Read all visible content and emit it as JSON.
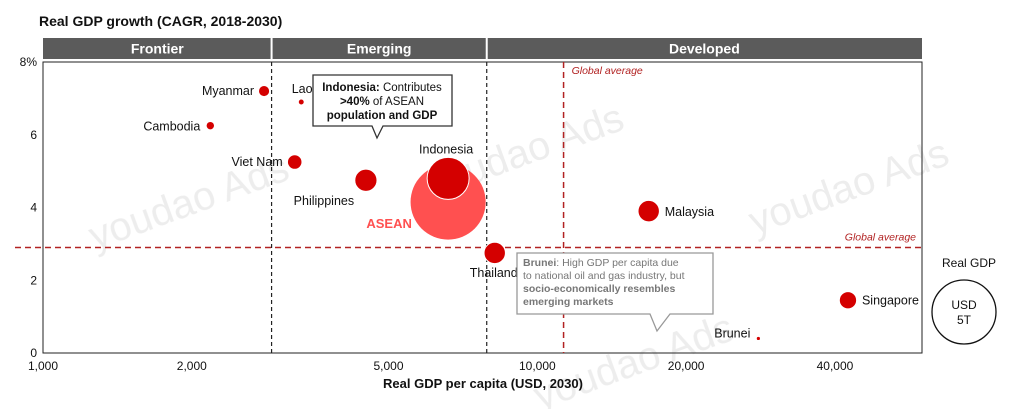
{
  "chart_data": {
    "type": "scatter",
    "title": "Real GDP growth (CAGR, 2018-2030)",
    "xlabel": "Real GDP per capita (USD, 2030)",
    "x_scale": "log",
    "xlim": [
      1000,
      60000
    ],
    "ylim": [
      0,
      8
    ],
    "x_ticks": [
      {
        "value": 1000,
        "label": "1,000"
      },
      {
        "value": 2000,
        "label": "2,000"
      },
      {
        "value": 5000,
        "label": "5,000"
      },
      {
        "value": 10000,
        "label": "10,000"
      },
      {
        "value": 20000,
        "label": "20,000"
      },
      {
        "value": 40000,
        "label": "40,000"
      }
    ],
    "y_ticks": [
      {
        "value": 0,
        "label": "0"
      },
      {
        "value": 2,
        "label": "2"
      },
      {
        "value": 4,
        "label": "4"
      },
      {
        "value": 6,
        "label": "6"
      },
      {
        "value": 8,
        "label": "8%"
      }
    ],
    "segments": [
      {
        "label": "Frontier",
        "x_from": 1000,
        "x_to": 2900
      },
      {
        "label": "Emerging",
        "x_from": 2900,
        "x_to": 7900
      },
      {
        "label": "Developed",
        "x_from": 7900,
        "x_to": 60000
      }
    ],
    "segment_divider_x": [
      2900,
      7900
    ],
    "global_average": {
      "x": 11300,
      "y": 2.9,
      "x_label": "Global average",
      "y_label": "Global average"
    },
    "points": [
      {
        "name": "Myanmar",
        "x": 2800,
        "y": 7.2,
        "size": 0.07
      },
      {
        "name": "Laos",
        "x": 3330,
        "y": 6.9,
        "size": 0.02
      },
      {
        "name": "Cambodia",
        "x": 2180,
        "y": 6.25,
        "size": 0.04
      },
      {
        "name": "Viet Nam",
        "x": 3230,
        "y": 5.25,
        "size": 0.12
      },
      {
        "name": "Philippines",
        "x": 4500,
        "y": 4.75,
        "size": 0.28
      },
      {
        "name": "Indonesia",
        "x": 6600,
        "y": 4.8,
        "size": 1.0
      },
      {
        "name": "ASEAN",
        "x": 6600,
        "y": 4.15,
        "size": 3.2
      },
      {
        "name": "Thailand",
        "x": 8200,
        "y": 2.75,
        "size": 0.26
      },
      {
        "name": "Malaysia",
        "x": 16800,
        "y": 3.9,
        "size": 0.26
      },
      {
        "name": "Singapore",
        "x": 42500,
        "y": 1.45,
        "size": 0.17
      },
      {
        "name": "Brunei",
        "x": 28000,
        "y": 0.4,
        "size": 0.01
      }
    ],
    "size_legend": {
      "title": "Real GDP",
      "line1": "USD",
      "line2": "5T"
    },
    "colors": {
      "bubble": "#d40000",
      "asean": "#ff5050",
      "asean_label": "#ff5050",
      "average_line": "#b22222",
      "segment_bar": "#5b5b5b"
    }
  },
  "callouts": {
    "indonesia": {
      "bold": "Indonesia:",
      "text": " Contributes",
      "line2_bold": ">40%",
      "line2_text": " of ASEAN",
      "line3_bold": "population and GDP"
    },
    "brunei": {
      "line1_bold": "Brunei",
      "line1_text": ": High GDP per capita due",
      "line2": "to national oil and gas industry, but",
      "line3": "socio-economically resembles",
      "line4": "emerging markets"
    }
  },
  "watermark": "youdao Ads"
}
